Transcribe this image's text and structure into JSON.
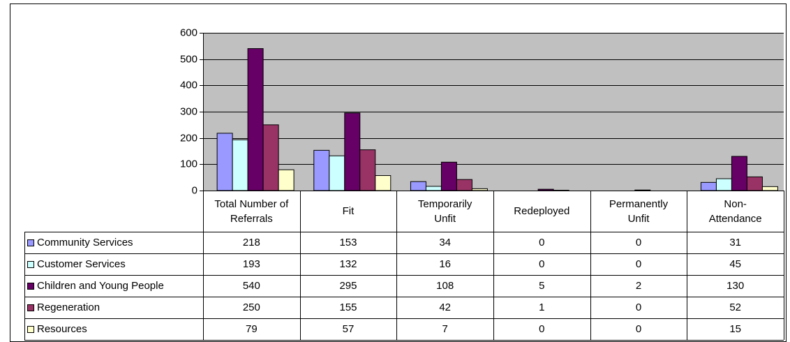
{
  "chart_data": {
    "type": "bar",
    "categories": [
      "Total Number of Referrals",
      "Fit",
      "Temporarily Unfit",
      "Redeployed",
      "Permanently Unfit",
      "Non-Attendance"
    ],
    "series": [
      {
        "name": "Community Services",
        "color": "#9999ff",
        "values": [
          218,
          153,
          34,
          0,
          0,
          31
        ]
      },
      {
        "name": "Customer Services",
        "color": "#ccffff",
        "values": [
          193,
          132,
          16,
          0,
          0,
          45
        ]
      },
      {
        "name": "Children and Young People",
        "color": "#660066",
        "values": [
          540,
          295,
          108,
          5,
          2,
          130
        ]
      },
      {
        "name": "Regeneration",
        "color": "#993366",
        "values": [
          250,
          155,
          42,
          1,
          0,
          52
        ]
      },
      {
        "name": "Resources",
        "color": "#ffffcc",
        "values": [
          79,
          57,
          7,
          0,
          0,
          15
        ]
      }
    ],
    "ylim": [
      0,
      600
    ],
    "yticks": [
      0,
      100,
      200,
      300,
      400,
      500,
      600
    ],
    "grid": true,
    "plot_background": "#c0c0c0"
  }
}
